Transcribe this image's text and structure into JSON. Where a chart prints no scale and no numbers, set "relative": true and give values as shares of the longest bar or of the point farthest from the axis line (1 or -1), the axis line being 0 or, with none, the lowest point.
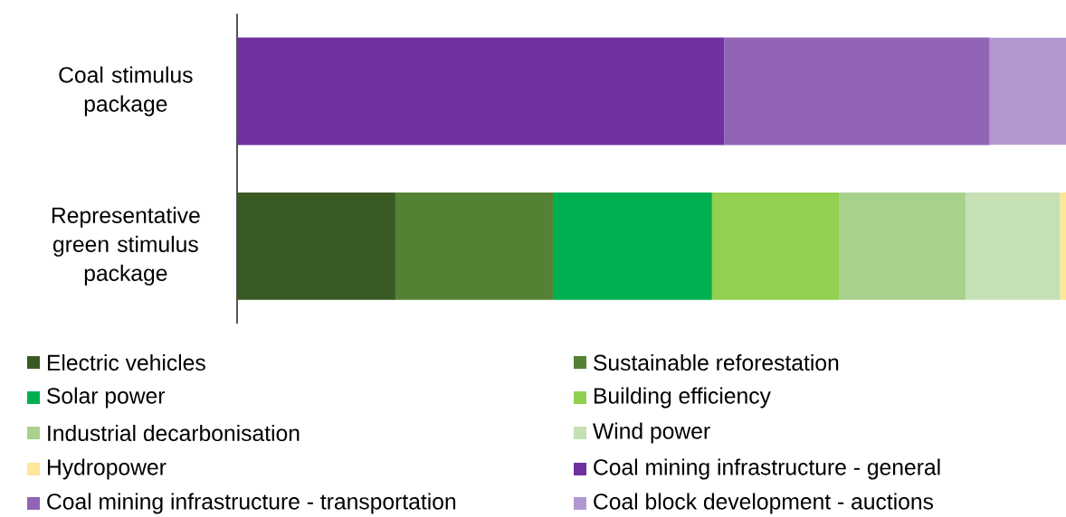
{
  "chart_data": {
    "type": "bar",
    "orientation": "horizontal",
    "stacked": true,
    "relative": true,
    "legend": "bottom",
    "categories": [
      "Coal stimulus package",
      "Representative green stimulus package"
    ],
    "series": [
      {
        "name": "Electric vehicles",
        "color": "#3a5a24",
        "values": [
          null,
          0.191
        ]
      },
      {
        "name": "Sustainable reforestation",
        "color": "#548235",
        "values": [
          null,
          0.19
        ]
      },
      {
        "name": "Solar power",
        "color": "#00b050",
        "values": [
          null,
          0.192
        ]
      },
      {
        "name": "Building efficiency",
        "color": "#92d050",
        "values": [
          null,
          0.153
        ]
      },
      {
        "name": "Industrial decarbonisation",
        "color": "#a9d18e",
        "values": [
          null,
          0.153
        ]
      },
      {
        "name": "Wind power",
        "color": "#c5e0b4",
        "values": [
          null,
          0.114
        ]
      },
      {
        "name": "Hydropower",
        "color": "#ffe699",
        "values": [
          null,
          0.007
        ]
      },
      {
        "name": "Coal mining infrastructure - general",
        "color": "#7030a0",
        "values": [
          0.588,
          null
        ]
      },
      {
        "name": "Coal mining infrastructure - transportation",
        "color": "#9264b6",
        "values": [
          0.32,
          null
        ]
      },
      {
        "name": "Coal block development - auctions",
        "color": "#b397d0",
        "values": [
          0.092,
          null
        ]
      }
    ]
  }
}
